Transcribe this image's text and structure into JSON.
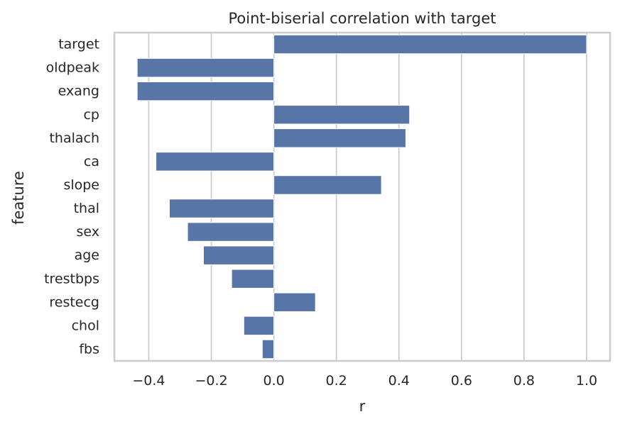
{
  "chart_data": {
    "type": "bar",
    "orientation": "horizontal",
    "title": "Point-biserial correlation with target",
    "xlabel": "r",
    "ylabel": "feature",
    "categories": [
      "target",
      "oldpeak",
      "exang",
      "cp",
      "thalach",
      "ca",
      "slope",
      "thal",
      "sex",
      "age",
      "trestbps",
      "restecg",
      "chol",
      "fbs"
    ],
    "values": [
      1.0,
      -0.437,
      -0.437,
      0.434,
      0.422,
      -0.377,
      0.344,
      -0.334,
      -0.276,
      -0.225,
      -0.135,
      0.133,
      -0.096,
      -0.037
    ],
    "xlim": [
      -0.51,
      1.075
    ],
    "xticks": [
      -0.4,
      -0.2,
      0.0,
      0.2,
      0.4,
      0.6,
      0.8,
      1.0
    ],
    "xtick_labels": [
      "−0.4",
      "−0.2",
      "0.0",
      "0.2",
      "0.4",
      "0.6",
      "0.8",
      "1.0"
    ],
    "grid": "x",
    "bar_color": "#5875a8",
    "grid_color": "#cccccc",
    "frame_color": "#cccccc",
    "text_color": "#262626"
  }
}
